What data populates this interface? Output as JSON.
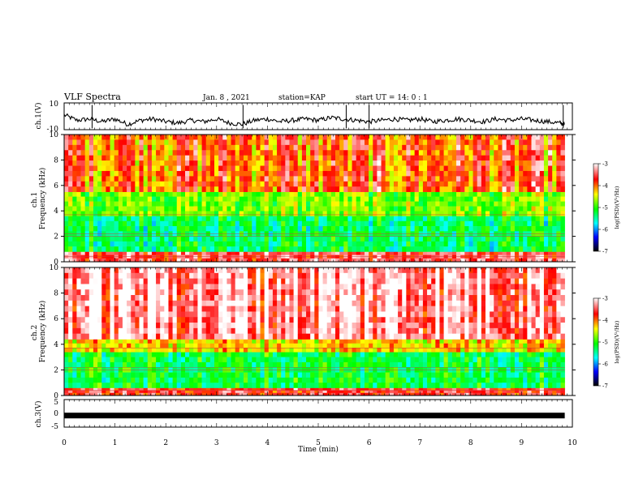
{
  "header": {
    "title": "VLF Spectra",
    "date": "Jan. 8 , 2021",
    "station": "station=KAP",
    "start": "start UT = 14: 0 : 1"
  },
  "chart_data": [
    {
      "type": "line",
      "id": "ch1-waveform",
      "ylabel": "ch.1(V)",
      "ylim": [
        -10,
        10
      ],
      "yticks": [
        "10",
        "-10"
      ],
      "x": [
        0.0,
        0.25,
        0.5,
        0.75,
        1.0,
        1.25,
        1.5,
        1.75,
        2.0,
        2.25,
        2.5,
        2.75,
        3.0,
        3.25,
        3.5,
        3.75,
        4.0,
        4.25,
        4.5,
        4.75,
        5.0,
        5.25,
        5.5,
        5.75,
        6.0,
        6.25,
        6.5,
        6.75,
        7.0,
        7.25,
        7.5,
        7.75,
        8.0,
        8.25,
        8.5,
        8.75,
        9.0,
        9.25,
        9.5,
        9.75,
        9.85
      ],
      "y": [
        1,
        -3,
        -2,
        -4,
        -2,
        -6,
        -3,
        -2,
        -4,
        -5,
        -3,
        -4,
        -2,
        -5,
        -6,
        -3,
        -2,
        -4,
        -3,
        -2,
        -3,
        -1,
        -2,
        -3,
        -4,
        -3,
        -2,
        -3,
        -2,
        -4,
        -3,
        -2,
        -3,
        -4,
        -2,
        -3,
        -2,
        -3,
        -4,
        -5,
        -6
      ]
    },
    {
      "type": "heatmap",
      "id": "ch1-spectrogram",
      "ylabel": "ch.1\nFrequency (kHz)",
      "ylim": [
        0,
        10
      ],
      "yticks": [
        "0",
        "2",
        "4",
        "6",
        "8",
        "10"
      ],
      "bands_khz": [
        {
          "from": 0,
          "to": 0.8,
          "level": -3.5
        },
        {
          "from": 0.8,
          "to": 3.6,
          "level": -5.3
        },
        {
          "from": 3.6,
          "to": 5.5,
          "level": -4.8
        },
        {
          "from": 5.5,
          "to": 10,
          "level": -3.9
        }
      ],
      "colorbar": {
        "label": "log(PSD)(V²/Hz)",
        "range": [
          -7,
          -3
        ],
        "ticks": [
          "-3",
          "-4",
          "-5",
          "-6",
          "-7"
        ]
      }
    },
    {
      "type": "heatmap",
      "id": "ch2-spectrogram",
      "ylabel": "ch.2\nFrequency (kHz)",
      "ylim": [
        0,
        10
      ],
      "yticks": [
        "0",
        "2",
        "4",
        "6",
        "8",
        "10"
      ],
      "bands_khz": [
        {
          "from": 0,
          "to": 0.6,
          "level": -3.6
        },
        {
          "from": 0.6,
          "to": 3.4,
          "level": -5.2
        },
        {
          "from": 3.4,
          "to": 4.4,
          "level": -4.3
        },
        {
          "from": 4.4,
          "to": 10,
          "level": -3.2
        }
      ],
      "colorbar": {
        "label": "log(PSD)(V²/Hz)",
        "range": [
          -7,
          -3
        ],
        "ticks": [
          "-3",
          "-4",
          "-5",
          "-6",
          "-7"
        ]
      }
    },
    {
      "type": "line",
      "id": "ch3-waveform",
      "ylabel": "ch.3(V)",
      "ylim": [
        -5,
        5
      ],
      "yticks": [
        "5",
        "0",
        "-5"
      ],
      "x": [
        0.0,
        9.85
      ],
      "y": [
        -0.8,
        -0.8
      ]
    }
  ],
  "x_axis": {
    "label": "Time (min)",
    "range": [
      0,
      10
    ],
    "ticks": [
      "0",
      "1",
      "2",
      "3",
      "4",
      "5",
      "6",
      "7",
      "8",
      "9",
      "10"
    ]
  }
}
